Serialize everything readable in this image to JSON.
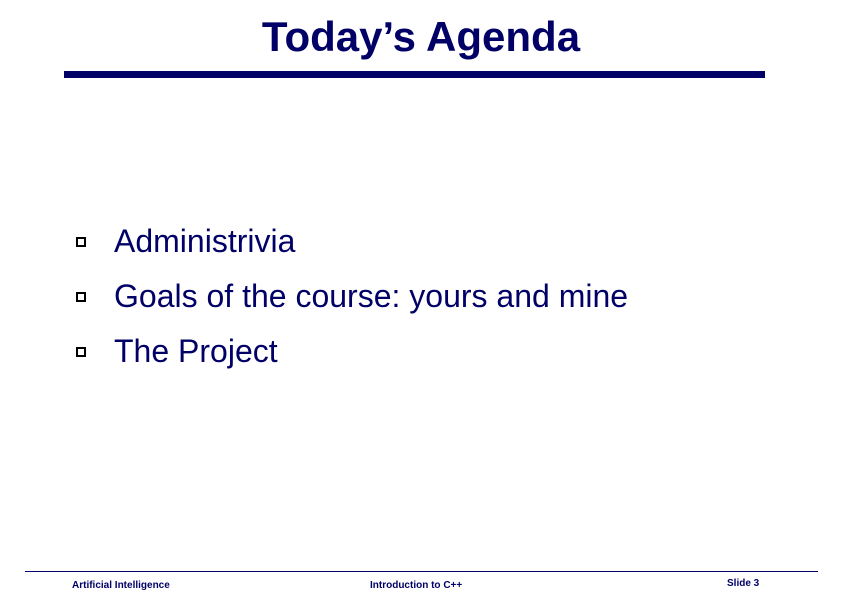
{
  "slide": {
    "title": "Today’s Agenda",
    "bullets": [
      {
        "text": "Administrivia"
      },
      {
        "text": "Goals of the course: yours and mine"
      },
      {
        "text": "The Project"
      }
    ]
  },
  "footer": {
    "left": "Artificial Intelligence",
    "center": "Introduction to C++",
    "right": "Slide 3"
  },
  "colors": {
    "title": "#000066",
    "text": "#000066",
    "bullet_marker": "#000000",
    "background": "#ffffff"
  },
  "icons": {
    "bullet": "hollow-square-bullet-icon"
  }
}
